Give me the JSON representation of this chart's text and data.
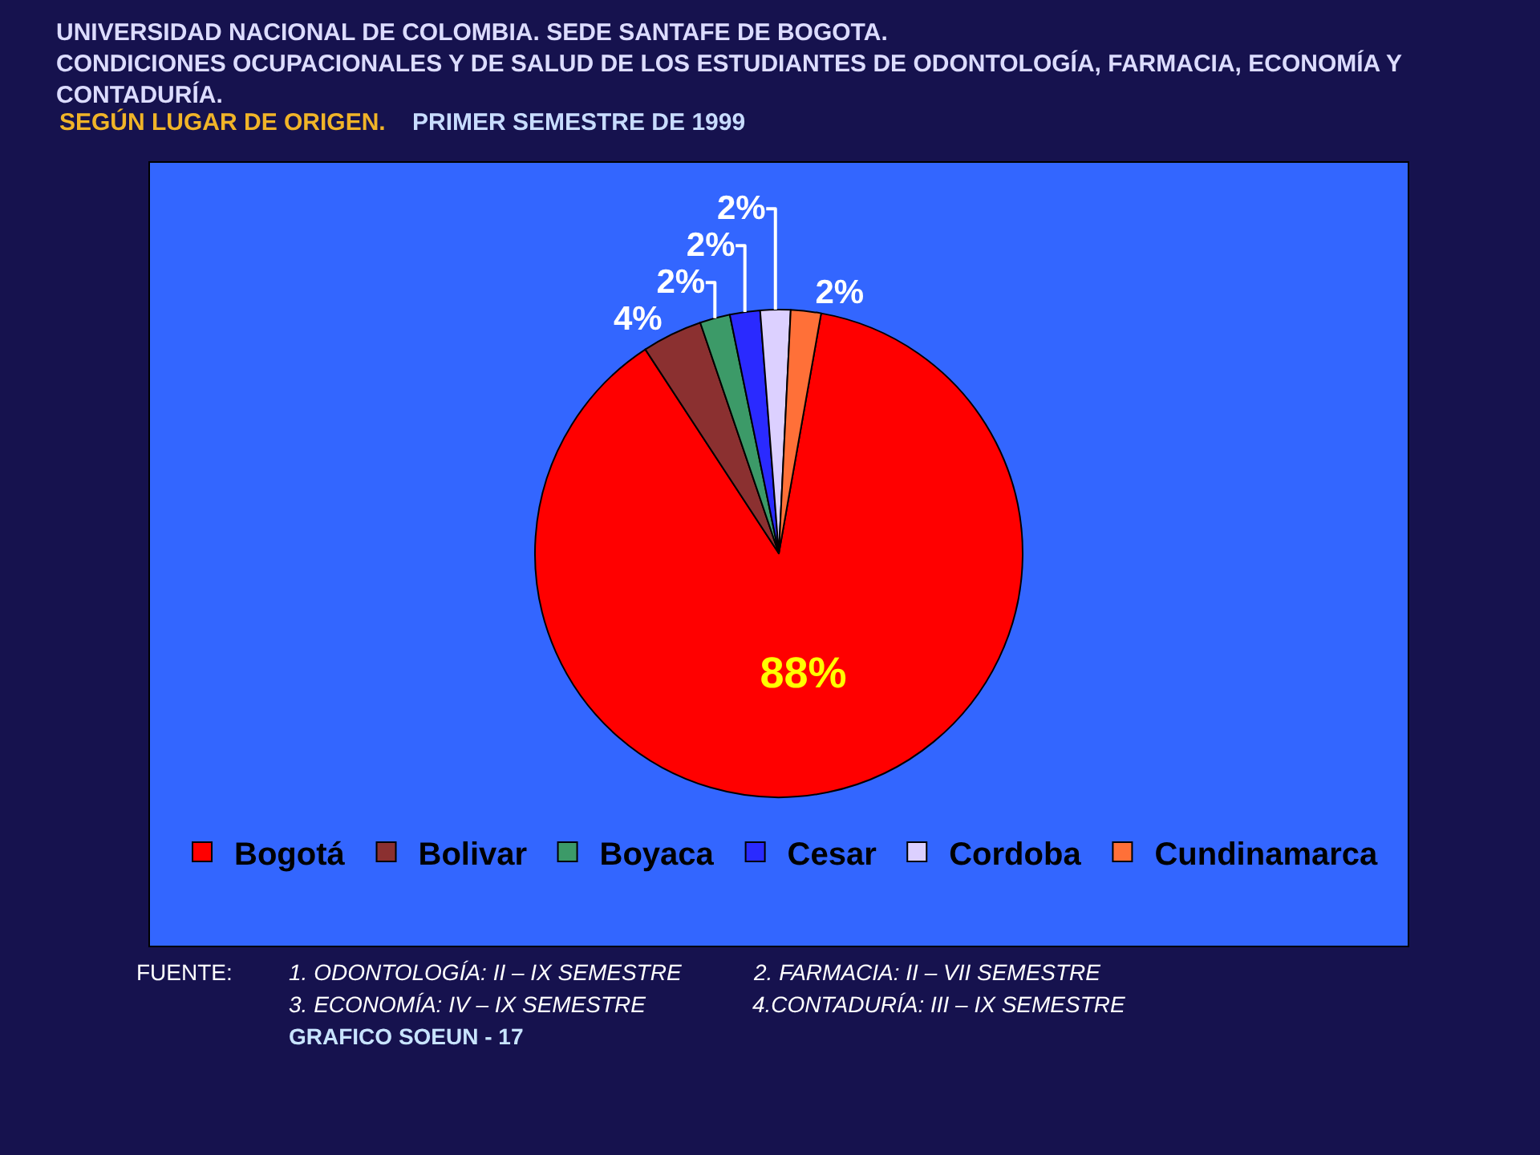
{
  "chart_data": {
    "type": "pie",
    "title": "UNIVERSIDAD NACIONAL DE COLOMBIA. SEDE SANTAFE DE BOGOTA.\nCONDICIONES OCUPACIONALES Y DE SALUD DE LOS ESTUDIANTES DE ODONTOLOGÍA, FARMACIA, ECONOMÍA Y CONTADURÍA.",
    "subtitle": "SEGÚN LUGAR DE ORIGEN.",
    "annotations": [
      "PRIMER SEMESTRE DE 1999",
      "FUENTE:",
      "1. ODONTOLOGÍA: II – IX SEMESTRE",
      "2. FARMACIA: II – VII SEMESTRE",
      "3. ECONOMÍA: IV – IX SEMESTRE",
      "4.CONTADURÍA: III – IX SEMESTRE",
      "GRAFICO SOEUN - 17"
    ],
    "categories": [
      "Bogotá",
      "Bolivar",
      "Boyaca",
      "Cesar",
      "Cordoba",
      "Cundinamarca"
    ],
    "values": [
      88,
      4,
      2,
      2,
      2,
      2
    ],
    "value_labels": [
      "88%",
      "4%",
      "2%",
      "2%",
      "2%",
      "2%"
    ],
    "colors": [
      "#ff0000",
      "#8b3030",
      "#3c9a68",
      "#2a2aff",
      "#dcd0ff",
      "#ff7038"
    ],
    "legend": "bottom"
  }
}
